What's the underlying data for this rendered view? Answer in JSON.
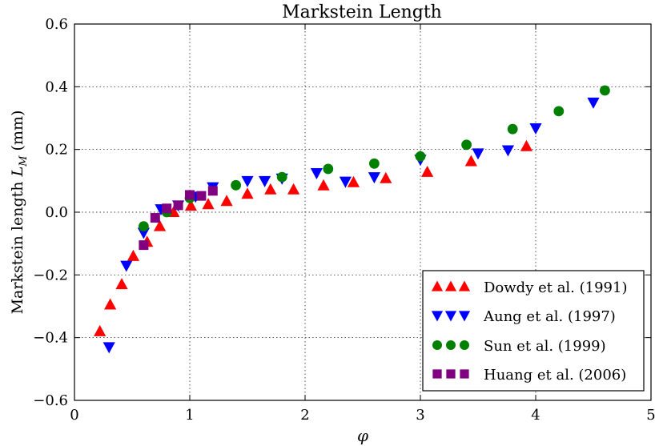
{
  "chart_data": {
    "type": "scatter",
    "title": "Markstein Length",
    "xlabel": "φ",
    "ylabel_main": "Markstein length ",
    "ylabel_sym": "L",
    "ylabel_sub": "M",
    "ylabel_unit": " (mm)",
    "xlim": [
      0,
      5
    ],
    "ylim": [
      -0.6,
      0.6
    ],
    "x_ticks": [
      0,
      1,
      2,
      3,
      4,
      5
    ],
    "x_tick_labels": [
      "0",
      "1",
      "2",
      "3",
      "4",
      "5"
    ],
    "y_ticks": [
      -0.6,
      -0.4,
      -0.2,
      0.0,
      0.2,
      0.4,
      0.6
    ],
    "y_tick_labels": [
      "−0.6",
      "−0.4",
      "−0.2",
      "0.0",
      "0.2",
      "0.4",
      "0.6"
    ],
    "grid": true,
    "legend_position": "bottom-right",
    "series": [
      {
        "name": "Dowdy et al. (1991)",
        "marker": "triangle-up",
        "color": "#ff0000",
        "points": [
          [
            0.22,
            -0.38
          ],
          [
            0.31,
            -0.295
          ],
          [
            0.41,
            -0.23
          ],
          [
            0.51,
            -0.14
          ],
          [
            0.63,
            -0.095
          ],
          [
            0.74,
            -0.045
          ],
          [
            0.86,
            0.0
          ],
          [
            1.01,
            0.02
          ],
          [
            1.16,
            0.025
          ],
          [
            1.32,
            0.035
          ],
          [
            1.5,
            0.058
          ],
          [
            1.7,
            0.072
          ],
          [
            1.9,
            0.072
          ],
          [
            2.16,
            0.085
          ],
          [
            2.42,
            0.095
          ],
          [
            2.7,
            0.108
          ],
          [
            3.06,
            0.128
          ],
          [
            3.44,
            0.162
          ],
          [
            3.92,
            0.21
          ]
        ]
      },
      {
        "name": "Aung et al. (1997)",
        "marker": "triangle-down",
        "color": "#0000ff",
        "points": [
          [
            0.3,
            -0.43
          ],
          [
            0.45,
            -0.17
          ],
          [
            0.6,
            -0.065
          ],
          [
            0.75,
            0.01
          ],
          [
            0.9,
            0.022
          ],
          [
            1.05,
            0.05
          ],
          [
            1.2,
            0.08
          ],
          [
            1.5,
            0.1
          ],
          [
            1.65,
            0.1
          ],
          [
            1.8,
            0.108
          ],
          [
            2.1,
            0.125
          ],
          [
            2.35,
            0.098
          ],
          [
            2.6,
            0.112
          ],
          [
            3.0,
            0.168
          ],
          [
            3.5,
            0.188
          ],
          [
            3.76,
            0.198
          ],
          [
            4.0,
            0.268
          ],
          [
            4.5,
            0.35
          ]
        ]
      },
      {
        "name": "Sun et al. (1999)",
        "marker": "circle",
        "color": "#008000",
        "points": [
          [
            0.6,
            -0.045
          ],
          [
            0.8,
            0.0
          ],
          [
            1.0,
            0.045
          ],
          [
            1.4,
            0.086
          ],
          [
            1.8,
            0.112
          ],
          [
            2.2,
            0.138
          ],
          [
            2.6,
            0.155
          ],
          [
            3.0,
            0.178
          ],
          [
            3.4,
            0.215
          ],
          [
            3.8,
            0.265
          ],
          [
            4.2,
            0.322
          ],
          [
            4.6,
            0.388
          ]
        ]
      },
      {
        "name": "Huang et al. (2006)",
        "marker": "square",
        "color": "#800080",
        "points": [
          [
            0.6,
            -0.105
          ],
          [
            0.7,
            -0.018
          ],
          [
            0.8,
            0.012
          ],
          [
            0.9,
            0.022
          ],
          [
            1.0,
            0.055
          ],
          [
            1.1,
            0.052
          ],
          [
            1.2,
            0.068
          ]
        ]
      }
    ]
  }
}
